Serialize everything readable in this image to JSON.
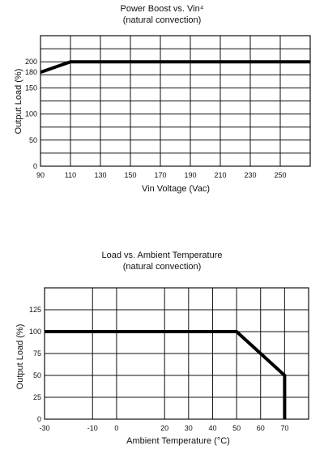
{
  "chart_data": [
    {
      "type": "line",
      "title": "Power Boost vs. Vin⁴",
      "subtitle": "(natural convection)",
      "xlabel": "Vin Voltage (Vac)",
      "ylabel": "Output Load (%)",
      "xlim": [
        90,
        270
      ],
      "ylim": [
        0,
        250
      ],
      "x_ticks": [
        "90",
        "110",
        "130",
        "150",
        "170",
        "190",
        "210",
        "230",
        "250"
      ],
      "y_ticks": [
        "0",
        "50",
        "100",
        "150",
        "180",
        "200"
      ],
      "grid": true,
      "series": [
        {
          "x": [
            90,
            110,
            270
          ],
          "y": [
            180,
            200,
            200
          ]
        }
      ]
    },
    {
      "type": "line",
      "title": "Load vs. Ambient Temperature",
      "subtitle": "(natural convection)",
      "xlabel": "Ambient Temperature (°C)",
      "ylabel": "Output Load (%)",
      "xlim": [
        -30,
        80
      ],
      "ylim": [
        0,
        150
      ],
      "x_ticks": [
        "-30",
        "-10",
        "0",
        "20",
        "30",
        "40",
        "50",
        "60",
        "70"
      ],
      "y_ticks": [
        "0",
        "25",
        "50",
        "75",
        "100",
        "125"
      ],
      "grid": true,
      "series": [
        {
          "x": [
            -30,
            50,
            70,
            70
          ],
          "y": [
            100,
            100,
            50,
            0
          ]
        }
      ]
    }
  ]
}
